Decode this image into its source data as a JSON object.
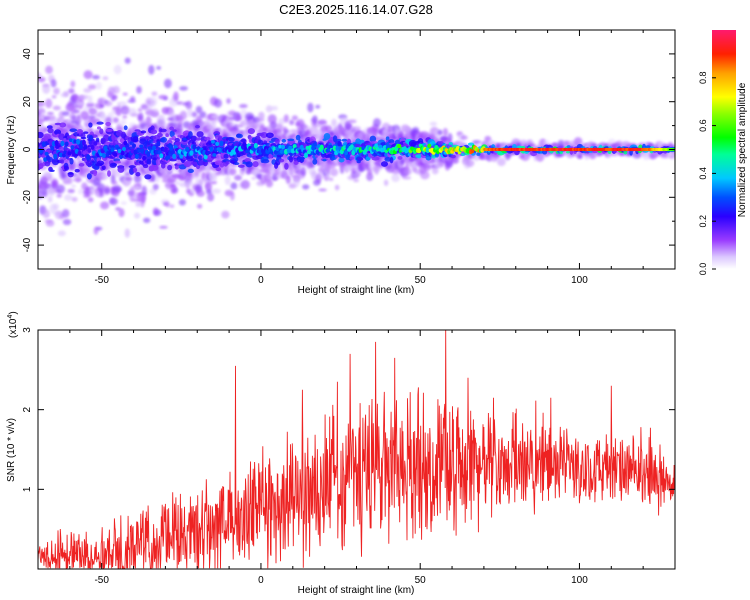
{
  "chart_data": [
    {
      "type": "heatmap",
      "title": "C2E3.2025.116.14.07.G28",
      "xlabel": "Height of straight line (km)",
      "ylabel": "Frequency (Hz)",
      "xlim": [
        -70,
        130
      ],
      "ylim": [
        -50,
        50
      ],
      "x_ticks": [
        -50,
        0,
        50,
        100
      ],
      "y_ticks": [
        -40,
        -20,
        0,
        20,
        40
      ],
      "colorbar": {
        "label": "Normalized spectral amplitude",
        "range": [
          0,
          1
        ],
        "ticks": [
          "0.0",
          "0.2",
          "0.4",
          "0.6",
          "0.8"
        ],
        "tick_values": [
          0,
          0.2,
          0.4,
          0.6,
          0.8
        ]
      },
      "description_of_signal": {
        "center_frequency_hz": 0,
        "spread_hz_at_x": [
          {
            "x": -70,
            "spread": 12
          },
          {
            "x": -30,
            "spread": 10
          },
          {
            "x": 0,
            "spread": 6
          },
          {
            "x": 50,
            "spread": 4
          },
          {
            "x": 75,
            "spread": 1.5
          },
          {
            "x": 130,
            "spread": 1
          }
        ],
        "peak_amplitude_at_x": [
          {
            "x": -70,
            "amp": 0.3
          },
          {
            "x": 0,
            "amp": 0.4
          },
          {
            "x": 40,
            "amp": 0.55
          },
          {
            "x": 60,
            "amp": 0.8
          },
          {
            "x": 75,
            "amp": 0.95
          },
          {
            "x": 120,
            "amp": 0.95
          },
          {
            "x": 130,
            "amp": 0.6
          }
        ]
      }
    },
    {
      "type": "line",
      "xlabel": "Height of straight line (km)",
      "ylabel": "SNR (10 * v/v)",
      "y_scale_label_base": "(x10",
      "y_scale_label_exp": "4",
      "y_scale_label_close": ")",
      "xlim": [
        -70,
        130
      ],
      "ylim": [
        0,
        3
      ],
      "x_ticks": [
        -50,
        0,
        50,
        100
      ],
      "y_ticks": [
        1,
        2,
        3
      ],
      "series": [
        {
          "name": "SNR",
          "color": "#ee2222",
          "envelope": [
            {
              "x": -70,
              "base": 0.15,
              "noise": 0.25
            },
            {
              "x": -50,
              "base": 0.2,
              "noise": 0.35
            },
            {
              "x": -30,
              "base": 0.35,
              "noise": 0.5
            },
            {
              "x": -10,
              "base": 0.6,
              "noise": 0.7
            },
            {
              "x": 10,
              "base": 0.9,
              "noise": 0.8
            },
            {
              "x": 30,
              "base": 1.2,
              "noise": 1.0
            },
            {
              "x": 50,
              "base": 1.3,
              "noise": 0.9
            },
            {
              "x": 70,
              "base": 1.3,
              "noise": 0.7
            },
            {
              "x": 90,
              "base": 1.3,
              "noise": 0.5
            },
            {
              "x": 110,
              "base": 1.25,
              "noise": 0.45
            },
            {
              "x": 130,
              "base": 1.1,
              "noise": 0.4
            }
          ],
          "notable_peaks": [
            {
              "x": -8,
              "y": 2.55
            },
            {
              "x": 13,
              "y": 2.25
            },
            {
              "x": 24,
              "y": 2.35
            },
            {
              "x": 28,
              "y": 2.7
            },
            {
              "x": 36,
              "y": 2.85
            },
            {
              "x": 42,
              "y": 2.65
            },
            {
              "x": 58,
              "y": 3.0
            },
            {
              "x": 65,
              "y": 2.4
            },
            {
              "x": 73,
              "y": 2.15
            },
            {
              "x": 91,
              "y": 2.15
            },
            {
              "x": 110,
              "y": 2.3
            }
          ]
        }
      ]
    }
  ]
}
